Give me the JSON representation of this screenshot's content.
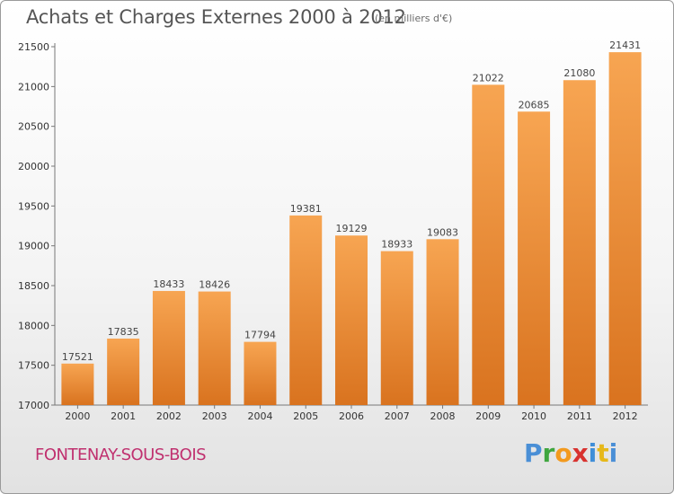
{
  "header": {
    "title": "Achats et Charges Externes 2000 à 2012",
    "subtitle": "(en milliers d'€)"
  },
  "footer": {
    "city": "FONTENAY-SOUS-BOIS",
    "brand_letters": [
      "P",
      "r",
      "o",
      "x",
      "i",
      "t",
      "i"
    ]
  },
  "colors": {
    "bar_top": "#f7a552",
    "bar_bottom": "#d9731f",
    "city": "#c0306f"
  },
  "chart_data": {
    "type": "bar",
    "categories": [
      "2000",
      "2001",
      "2002",
      "2003",
      "2004",
      "2005",
      "2006",
      "2007",
      "2008",
      "2009",
      "2010",
      "2011",
      "2012"
    ],
    "values": [
      17521,
      17835,
      18433,
      18426,
      17794,
      19381,
      19129,
      18933,
      19083,
      21022,
      20685,
      21080,
      21431
    ],
    "title": "Achats et Charges Externes 2000 à 2012",
    "subtitle": "(en milliers d'€)",
    "ylim": [
      17000,
      21500
    ],
    "yticks": [
      17000,
      17500,
      18000,
      18500,
      19000,
      19500,
      20000,
      20500,
      21000,
      21500
    ],
    "grid": false,
    "legend": "none"
  }
}
